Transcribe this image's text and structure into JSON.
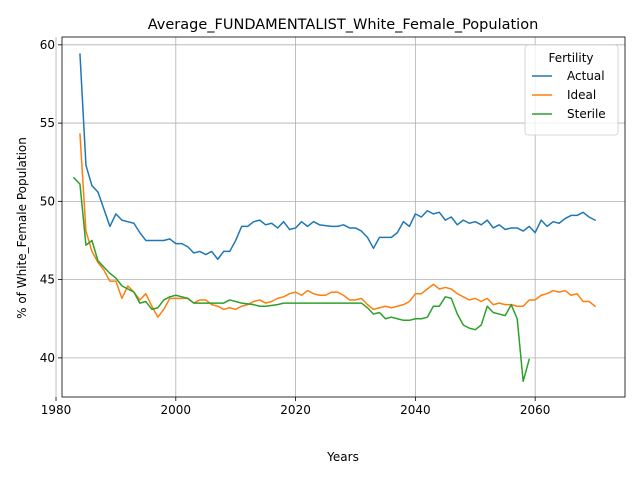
{
  "chart_data": {
    "type": "line",
    "title": "Average_FUNDAMENTALIST_White_Female_Population",
    "xlabel": "Years",
    "ylabel": "% of White_Female Population",
    "xlim": [
      1981,
      2075
    ],
    "ylim": [
      37.5,
      60.5
    ],
    "xticks": [
      1980,
      2000,
      2020,
      2040,
      2060
    ],
    "yticks": [
      40,
      45,
      50,
      55,
      60
    ],
    "grid": true,
    "legend": {
      "title": "Fertility",
      "placement": "top-right"
    },
    "series": [
      {
        "name": "Actual",
        "color": "#1f77b4",
        "points": [
          [
            1984,
            59.4
          ],
          [
            1985,
            52.3
          ],
          [
            1986,
            51.0
          ],
          [
            1987,
            50.6
          ],
          [
            1988,
            49.5
          ],
          [
            1989,
            48.4
          ],
          [
            1990,
            49.2
          ],
          [
            1991,
            48.8
          ],
          [
            1993,
            48.6
          ],
          [
            1994,
            48.0
          ],
          [
            1995,
            47.5
          ],
          [
            1998,
            47.5
          ],
          [
            1999,
            47.6
          ],
          [
            2000,
            47.3
          ],
          [
            2001,
            47.3
          ],
          [
            2002,
            47.1
          ],
          [
            2003,
            46.7
          ],
          [
            2004,
            46.8
          ],
          [
            2005,
            46.6
          ],
          [
            2006,
            46.8
          ],
          [
            2007,
            46.3
          ],
          [
            2008,
            46.8
          ],
          [
            2009,
            46.8
          ],
          [
            2010,
            47.5
          ],
          [
            2011,
            48.4
          ],
          [
            2012,
            48.4
          ],
          [
            2013,
            48.7
          ],
          [
            2014,
            48.8
          ],
          [
            2015,
            48.5
          ],
          [
            2016,
            48.6
          ],
          [
            2017,
            48.3
          ],
          [
            2018,
            48.7
          ],
          [
            2019,
            48.2
          ],
          [
            2020,
            48.3
          ],
          [
            2021,
            48.7
          ],
          [
            2022,
            48.4
          ],
          [
            2023,
            48.7
          ],
          [
            2024,
            48.5
          ],
          [
            2026,
            48.4
          ],
          [
            2027,
            48.4
          ],
          [
            2028,
            48.5
          ],
          [
            2029,
            48.3
          ],
          [
            2030,
            48.3
          ],
          [
            2031,
            48.1
          ],
          [
            2032,
            47.7
          ],
          [
            2033,
            47.0
          ],
          [
            2034,
            47.7
          ],
          [
            2035,
            47.7
          ],
          [
            2036,
            47.7
          ],
          [
            2037,
            48.0
          ],
          [
            2038,
            48.7
          ],
          [
            2039,
            48.4
          ],
          [
            2040,
            49.2
          ],
          [
            2041,
            49.0
          ],
          [
            2042,
            49.4
          ],
          [
            2043,
            49.2
          ],
          [
            2044,
            49.3
          ],
          [
            2045,
            48.8
          ],
          [
            2046,
            49.0
          ],
          [
            2047,
            48.5
          ],
          [
            2048,
            48.8
          ],
          [
            2049,
            48.6
          ],
          [
            2050,
            48.7
          ],
          [
            2051,
            48.5
          ],
          [
            2052,
            48.8
          ],
          [
            2053,
            48.3
          ],
          [
            2054,
            48.5
          ],
          [
            2055,
            48.2
          ],
          [
            2056,
            48.3
          ],
          [
            2057,
            48.3
          ],
          [
            2058,
            48.1
          ],
          [
            2059,
            48.4
          ],
          [
            2060,
            48.0
          ],
          [
            2061,
            48.8
          ],
          [
            2062,
            48.4
          ],
          [
            2063,
            48.7
          ],
          [
            2064,
            48.6
          ],
          [
            2065,
            48.9
          ],
          [
            2066,
            49.1
          ],
          [
            2067,
            49.1
          ],
          [
            2068,
            49.3
          ],
          [
            2069,
            49.0
          ],
          [
            2070,
            48.8
          ]
        ]
      },
      {
        "name": "Ideal",
        "color": "#ff7f0e",
        "points": [
          [
            1984,
            54.3
          ],
          [
            1985,
            48.1
          ],
          [
            1986,
            46.8
          ],
          [
            1987,
            46.1
          ],
          [
            1988,
            45.6
          ],
          [
            1989,
            44.9
          ],
          [
            1990,
            44.9
          ],
          [
            1991,
            43.8
          ],
          [
            1992,
            44.6
          ],
          [
            1993,
            44.2
          ],
          [
            1994,
            43.7
          ],
          [
            1995,
            44.1
          ],
          [
            1996,
            43.3
          ],
          [
            1997,
            42.6
          ],
          [
            1998,
            43.1
          ],
          [
            1999,
            43.8
          ],
          [
            2000,
            43.8
          ],
          [
            2002,
            43.8
          ],
          [
            2003,
            43.5
          ],
          [
            2004,
            43.7
          ],
          [
            2005,
            43.7
          ],
          [
            2006,
            43.4
          ],
          [
            2007,
            43.3
          ],
          [
            2008,
            43.1
          ],
          [
            2009,
            43.2
          ],
          [
            2010,
            43.1
          ],
          [
            2011,
            43.3
          ],
          [
            2012,
            43.4
          ],
          [
            2013,
            43.6
          ],
          [
            2014,
            43.7
          ],
          [
            2015,
            43.5
          ],
          [
            2016,
            43.6
          ],
          [
            2017,
            43.8
          ],
          [
            2018,
            43.9
          ],
          [
            2019,
            44.1
          ],
          [
            2020,
            44.2
          ],
          [
            2021,
            44.0
          ],
          [
            2022,
            44.3
          ],
          [
            2023,
            44.1
          ],
          [
            2024,
            44.0
          ],
          [
            2025,
            44.0
          ],
          [
            2026,
            44.2
          ],
          [
            2027,
            44.2
          ],
          [
            2028,
            44.0
          ],
          [
            2029,
            43.7
          ],
          [
            2030,
            43.7
          ],
          [
            2031,
            43.8
          ],
          [
            2032,
            43.4
          ],
          [
            2033,
            43.1
          ],
          [
            2034,
            43.2
          ],
          [
            2035,
            43.3
          ],
          [
            2036,
            43.2
          ],
          [
            2037,
            43.3
          ],
          [
            2038,
            43.4
          ],
          [
            2039,
            43.6
          ],
          [
            2040,
            44.1
          ],
          [
            2041,
            44.1
          ],
          [
            2042,
            44.4
          ],
          [
            2043,
            44.7
          ],
          [
            2044,
            44.4
          ],
          [
            2045,
            44.5
          ],
          [
            2046,
            44.4
          ],
          [
            2047,
            44.1
          ],
          [
            2048,
            43.9
          ],
          [
            2049,
            43.7
          ],
          [
            2050,
            43.8
          ],
          [
            2051,
            43.6
          ],
          [
            2052,
            43.8
          ],
          [
            2053,
            43.4
          ],
          [
            2054,
            43.5
          ],
          [
            2055,
            43.4
          ],
          [
            2056,
            43.4
          ],
          [
            2057,
            43.3
          ],
          [
            2058,
            43.3
          ],
          [
            2059,
            43.7
          ],
          [
            2060,
            43.7
          ],
          [
            2061,
            44.0
          ],
          [
            2062,
            44.1
          ],
          [
            2063,
            44.3
          ],
          [
            2064,
            44.2
          ],
          [
            2065,
            44.3
          ],
          [
            2066,
            44.0
          ],
          [
            2067,
            44.1
          ],
          [
            2068,
            43.6
          ],
          [
            2069,
            43.6
          ],
          [
            2070,
            43.3
          ]
        ]
      },
      {
        "name": "Sterile",
        "color": "#2ca02c",
        "points": [
          [
            1983,
            51.5
          ],
          [
            1984,
            51.1
          ],
          [
            1985,
            47.2
          ],
          [
            1986,
            47.5
          ],
          [
            1987,
            46.2
          ],
          [
            1988,
            45.8
          ],
          [
            1989,
            45.4
          ],
          [
            1990,
            45.1
          ],
          [
            1991,
            44.6
          ],
          [
            1992,
            44.4
          ],
          [
            1993,
            44.2
          ],
          [
            1994,
            43.5
          ],
          [
            1995,
            43.6
          ],
          [
            1996,
            43.1
          ],
          [
            1997,
            43.2
          ],
          [
            1998,
            43.7
          ],
          [
            1999,
            43.9
          ],
          [
            2000,
            44.0
          ],
          [
            2001,
            43.9
          ],
          [
            2002,
            43.8
          ],
          [
            2003,
            43.5
          ],
          [
            2004,
            43.5
          ],
          [
            2006,
            43.5
          ],
          [
            2007,
            43.5
          ],
          [
            2008,
            43.5
          ],
          [
            2009,
            43.7
          ],
          [
            2010,
            43.6
          ],
          [
            2011,
            43.5
          ],
          [
            2013,
            43.4
          ],
          [
            2014,
            43.3
          ],
          [
            2015,
            43.3
          ],
          [
            2017,
            43.4
          ],
          [
            2018,
            43.5
          ],
          [
            2030,
            43.5
          ],
          [
            2031,
            43.5
          ],
          [
            2032,
            43.2
          ],
          [
            2033,
            42.8
          ],
          [
            2034,
            42.9
          ],
          [
            2035,
            42.5
          ],
          [
            2036,
            42.6
          ],
          [
            2037,
            42.5
          ],
          [
            2038,
            42.4
          ],
          [
            2039,
            42.4
          ],
          [
            2040,
            42.5
          ],
          [
            2041,
            42.5
          ],
          [
            2042,
            42.6
          ],
          [
            2043,
            43.3
          ],
          [
            2044,
            43.3
          ],
          [
            2045,
            43.9
          ],
          [
            2046,
            43.8
          ],
          [
            2047,
            42.8
          ],
          [
            2048,
            42.1
          ],
          [
            2049,
            41.9
          ],
          [
            2050,
            41.8
          ],
          [
            2051,
            42.1
          ],
          [
            2052,
            43.3
          ],
          [
            2053,
            42.9
          ],
          [
            2054,
            42.8
          ],
          [
            2055,
            42.7
          ],
          [
            2056,
            43.4
          ],
          [
            2057,
            42.5
          ],
          [
            2058,
            38.5
          ],
          [
            2059,
            39.9
          ]
        ]
      }
    ]
  }
}
